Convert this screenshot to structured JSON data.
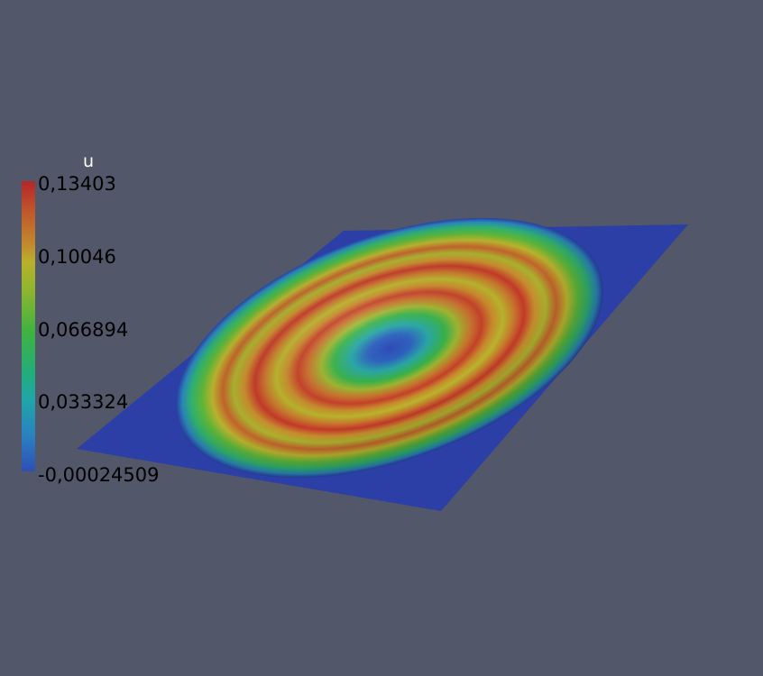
{
  "colorbar": {
    "title": "u",
    "ticks": [
      "0,13403",
      "0,10046",
      "0,066894",
      "0,033324",
      "-0,00024509"
    ],
    "colors": [
      "#b4262a",
      "#c28a2e",
      "#3fb240",
      "#20a6a8",
      "#2f4fb4"
    ]
  },
  "scene": {
    "background": "#525769",
    "plane_color": "#2b3fa6"
  }
}
